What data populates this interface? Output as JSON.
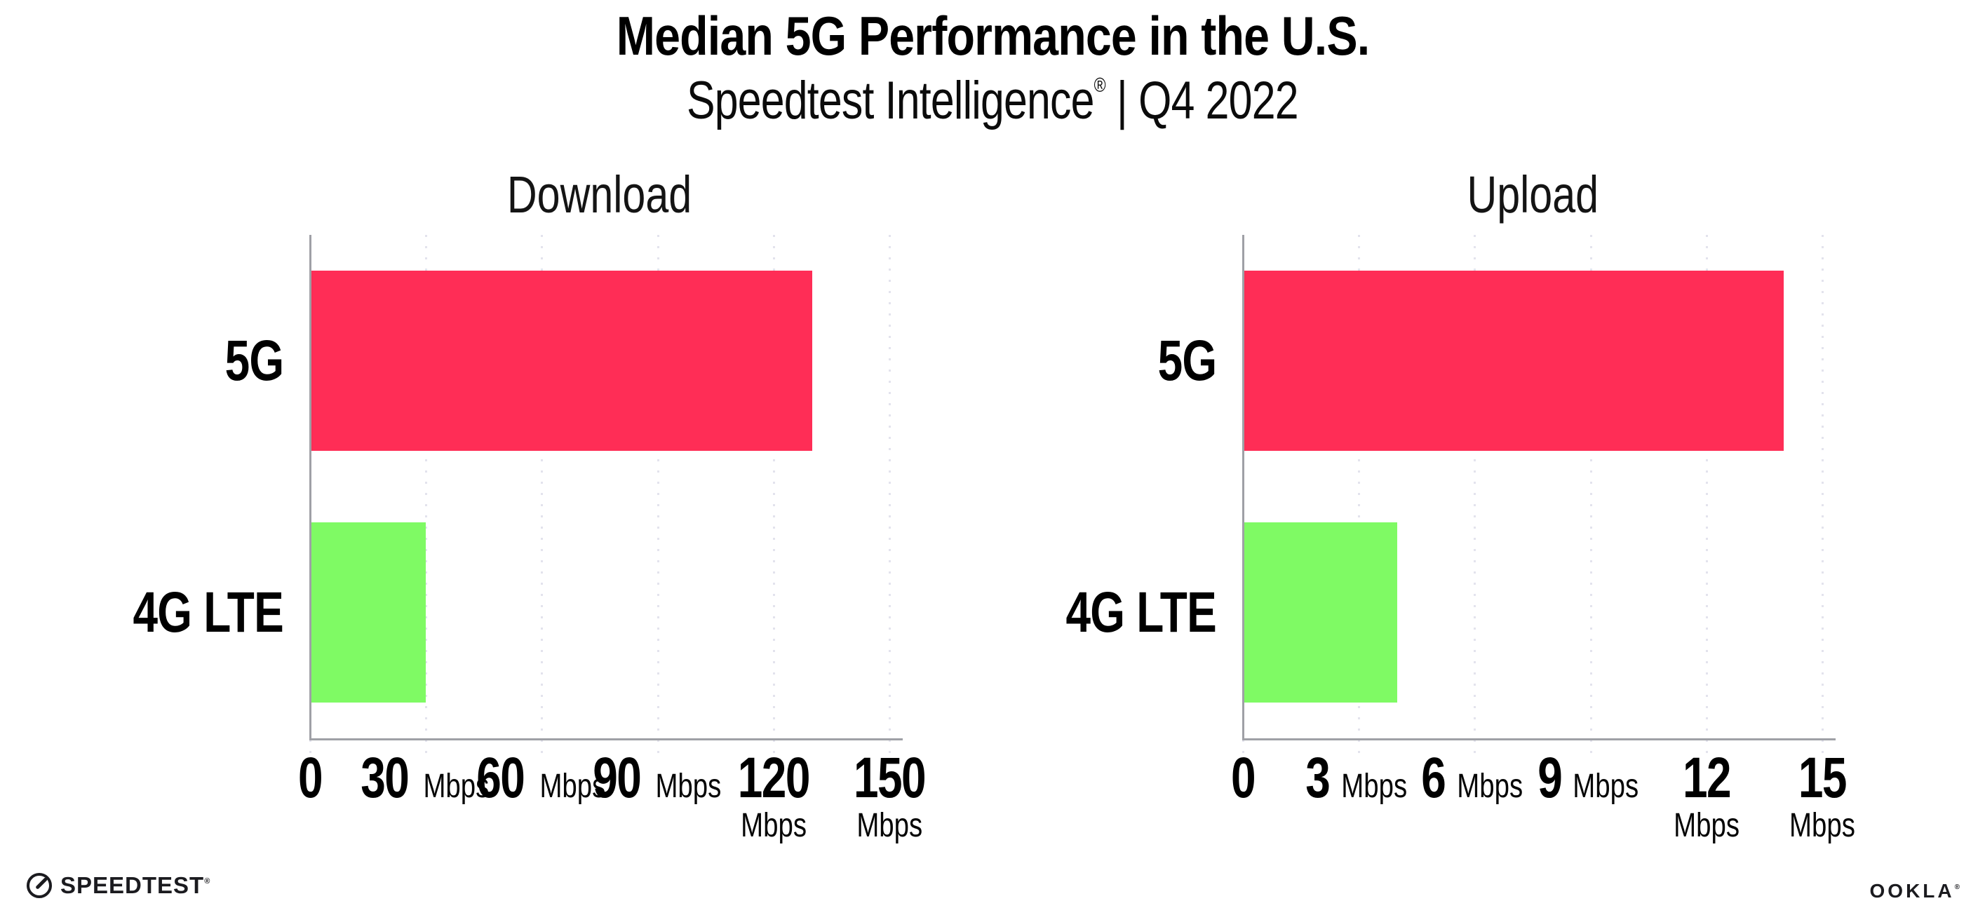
{
  "header": {
    "title": "Median 5G Performance in the U.S.",
    "subtitle_brand": "Speedtest Intelligence",
    "subtitle_reg": "®",
    "subtitle_rest": " | Q4 2022"
  },
  "colors": {
    "bar_5g": "#ff2d56",
    "bar_4g_lte": "#7ffa64",
    "series": [
      "#ff2d56",
      "#7ffa64"
    ],
    "gridline": "#e3e3ed",
    "axis": "#9fa0a6",
    "text": "#000000"
  },
  "chart_data": [
    {
      "type": "bar",
      "orientation": "horizontal",
      "title": "Download",
      "categories": [
        "5G",
        "4G LTE"
      ],
      "values": [
        130,
        30
      ],
      "unit": "Mbps",
      "tick_unit": "Mbps",
      "xlim": [
        0,
        150
      ],
      "xticks": [
        0,
        30,
        60,
        90,
        120,
        150
      ],
      "grid": "vertical-dotted",
      "legend": "none"
    },
    {
      "type": "bar",
      "orientation": "horizontal",
      "title": "Upload",
      "categories": [
        "5G",
        "4G LTE"
      ],
      "values": [
        14,
        4
      ],
      "unit": "Mbps",
      "tick_unit": "Mbps",
      "xlim": [
        0,
        15
      ],
      "xticks": [
        0,
        3,
        6,
        9,
        12,
        15
      ],
      "grid": "vertical-dotted",
      "legend": "none"
    }
  ],
  "footer": {
    "speedtest_icon": "speedtest-gauge-icon",
    "speedtest_label": "SPEEDTEST",
    "speedtest_reg": "®",
    "ookla_label": "OOKLA",
    "ookla_reg": "®"
  }
}
